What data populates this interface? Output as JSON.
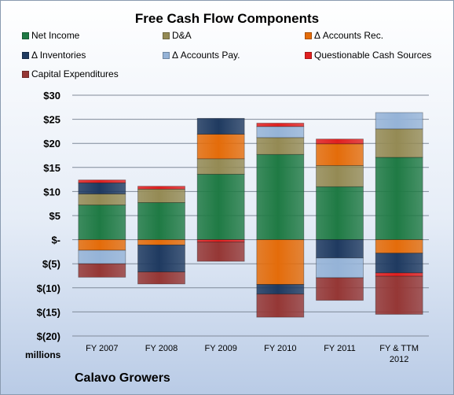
{
  "chart_data": {
    "type": "bar",
    "stacked": true,
    "title": "Free Cash Flow Components",
    "categories": [
      "FY 2007",
      "FY 2008",
      "FY 2009",
      "FY 2010",
      "FY 2011",
      "FY & TTM 2012"
    ],
    "y_tick_labels": [
      "$30",
      "$25",
      "$20",
      "$15",
      "$10",
      "$5",
      "$-",
      "$(5)",
      "$(10)",
      "$(15)",
      "$(20)"
    ],
    "ylim": [
      -20,
      30
    ],
    "y_unit_label": "millions",
    "grid": true,
    "legend_position": "top",
    "series": [
      {
        "name": "Net Income",
        "color": "#1f7a44",
        "values": [
          7.2,
          7.7,
          13.6,
          17.7,
          11.0,
          17.1
        ]
      },
      {
        "name": "D&A",
        "color": "#948a54",
        "values": [
          2.3,
          2.8,
          3.2,
          3.5,
          4.4,
          5.9
        ]
      },
      {
        "name": "Δ Accounts Rec.",
        "color": "#e46c0a",
        "values": [
          -2.2,
          -1.1,
          5.1,
          -9.3,
          4.5,
          -2.8
        ]
      },
      {
        "name": "Δ Inventories",
        "color": "#1f3a60",
        "values": [
          2.3,
          -5.6,
          3.3,
          -2.0,
          -3.8,
          -4.1
        ]
      },
      {
        "name": "Δ Accounts Pay.",
        "color": "#95b3d7",
        "values": [
          -2.8,
          0,
          0,
          2.3,
          -4.1,
          3.4
        ]
      },
      {
        "name": "Questionable Cash Sources",
        "color": "#e02020",
        "values": [
          0.6,
          0.6,
          -0.5,
          0.7,
          1.0,
          -0.7
        ]
      },
      {
        "name": "Capital Expenditures",
        "color": "#953735",
        "values": [
          -2.8,
          -2.5,
          -4.0,
          -4.8,
          -4.7,
          -7.9
        ]
      }
    ]
  },
  "footer": {
    "company": "Calavo Growers"
  }
}
